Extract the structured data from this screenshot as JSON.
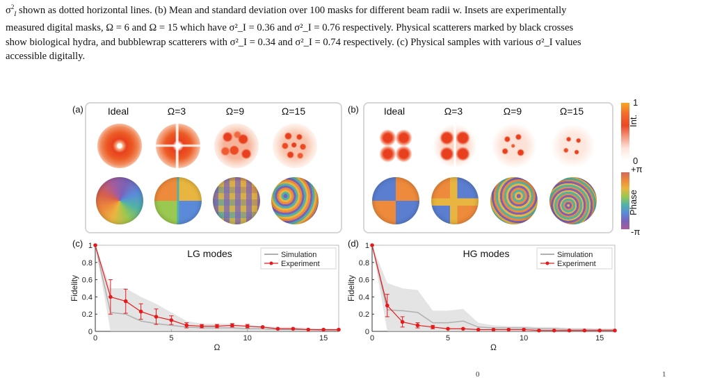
{
  "caption": {
    "line1_prefix": "σ",
    "line1": "shown as dotted horizontal lines. (b) Mean and standard deviation over 100 masks for different beam radii w. Insets are experimentally",
    "line2": "measured digital masks, Ω = 6 and Ω = 15 which have σ²_I = 0.36 and σ²_I = 0.76 respectively. Physical scatterers marked by black crosses",
    "line3": "show biological hydra, and bubblewrap scatterers with σ²_I = 0.34 and σ²_I = 0.74 respectively. (c) Physical samples with various σ²_I values",
    "line4": "accessible digitally."
  },
  "figure": {
    "panel_a_label": "(a)",
    "panel_b_label": "(b)",
    "panel_c_label": "(c)",
    "panel_d_label": "(d)",
    "column_headers": [
      "Ideal",
      "Ω=3",
      "Ω=9",
      "Ω=15"
    ],
    "colorbar_intensity": {
      "top": "1",
      "bottom": "0",
      "label": "Int."
    },
    "colorbar_phase": {
      "top": "+π",
      "bottom": "-π",
      "label": "Phase"
    },
    "colors": {
      "intensity_hot": "#e8401e",
      "phase_purple": "#7b62b8",
      "experiment": "#e41a1c",
      "simulation": "#b0b0b0"
    }
  },
  "footer": {
    "left_sup": "0",
    "right_sup": "1"
  },
  "chart_data": [
    {
      "type": "line",
      "title": "LG modes",
      "xlabel": "Ω",
      "ylabel": "Fidelity",
      "xlim": [
        0,
        16
      ],
      "ylim": [
        0,
        1
      ],
      "xticks": [
        "0",
        "5",
        "10",
        "15"
      ],
      "yticks": [
        "0",
        "0.2",
        "0.4",
        "0.6",
        "0.8",
        "1"
      ],
      "legend_position": "top-right",
      "series": [
        {
          "name": "Simulation",
          "x": [
            0,
            1,
            2,
            3,
            4,
            5,
            6,
            7,
            8,
            9,
            10,
            11,
            12,
            13,
            14,
            15,
            16
          ],
          "y": [
            1,
            0.22,
            0.2,
            0.12,
            0.09,
            0.07,
            0.05,
            0.04,
            0.04,
            0.04,
            0.03,
            0.03,
            0.02,
            0.02,
            0.02,
            0.01,
            0.01
          ],
          "band_upper": [
            1,
            0.5,
            0.5,
            0.4,
            0.32,
            0.22,
            0.12,
            0.09,
            0.09,
            0.09,
            0.07,
            0.06,
            0.05,
            0.05,
            0.04,
            0.03,
            0.03
          ],
          "band_lower": [
            1,
            0,
            0,
            0,
            0,
            0,
            0,
            0,
            0,
            0,
            0,
            0,
            0,
            0,
            0,
            0,
            0
          ]
        },
        {
          "name": "Experiment",
          "x": [
            0,
            1,
            2,
            3,
            4,
            5,
            6,
            7,
            8,
            9,
            10,
            11,
            12,
            13,
            14,
            15,
            16
          ],
          "y": [
            1,
            0.4,
            0.35,
            0.23,
            0.17,
            0.13,
            0.07,
            0.06,
            0.06,
            0.07,
            0.06,
            0.05,
            0.03,
            0.03,
            0.02,
            0.02,
            0.02
          ],
          "err": [
            0,
            0.2,
            0.14,
            0.09,
            0.09,
            0.05,
            0.03,
            0.02,
            0.02,
            0.02,
            0.02,
            0.01,
            0.01,
            0.01,
            0.01,
            0.01,
            0.01
          ]
        }
      ]
    },
    {
      "type": "line",
      "title": "HG modes",
      "xlabel": "Ω",
      "ylabel": "Fidelity",
      "xlim": [
        0,
        16
      ],
      "ylim": [
        0,
        1
      ],
      "xticks": [
        "0",
        "5",
        "10",
        "15"
      ],
      "yticks": [
        "0",
        "0.2",
        "0.4",
        "0.6",
        "0.8",
        "1"
      ],
      "legend_position": "top-right",
      "series": [
        {
          "name": "Simulation",
          "x": [
            0,
            1,
            2,
            3,
            4,
            5,
            6,
            7,
            8,
            9,
            10,
            11,
            12,
            13,
            14,
            15,
            16
          ],
          "y": [
            1,
            0.25,
            0.24,
            0.22,
            0.1,
            0.1,
            0.12,
            0.05,
            0.04,
            0.04,
            0.04,
            0.03,
            0.03,
            0.02,
            0.02,
            0.02,
            0.02
          ],
          "band_upper": [
            1,
            0.56,
            0.5,
            0.48,
            0.24,
            0.24,
            0.26,
            0.1,
            0.07,
            0.06,
            0.06,
            0.05,
            0.05,
            0.04,
            0.04,
            0.03,
            0.03
          ],
          "band_lower": [
            1,
            0,
            0,
            0,
            0,
            0,
            0,
            0,
            0,
            0,
            0,
            0,
            0,
            0,
            0,
            0,
            0
          ]
        },
        {
          "name": "Experiment",
          "x": [
            0,
            1,
            2,
            3,
            4,
            5,
            6,
            7,
            8,
            9,
            10,
            11,
            12,
            13,
            14,
            15,
            16
          ],
          "y": [
            1,
            0.3,
            0.11,
            0.07,
            0.05,
            0.03,
            0.03,
            0.02,
            0.02,
            0.02,
            0.02,
            0.01,
            0.01,
            0.01,
            0.01,
            0.01,
            0.01
          ],
          "err": [
            0,
            0.13,
            0.06,
            0.03,
            0.02,
            0.01,
            0.01,
            0.01,
            0.01,
            0.01,
            0.01,
            0.01,
            0.01,
            0.01,
            0.01,
            0.01,
            0.01
          ]
        }
      ]
    }
  ]
}
